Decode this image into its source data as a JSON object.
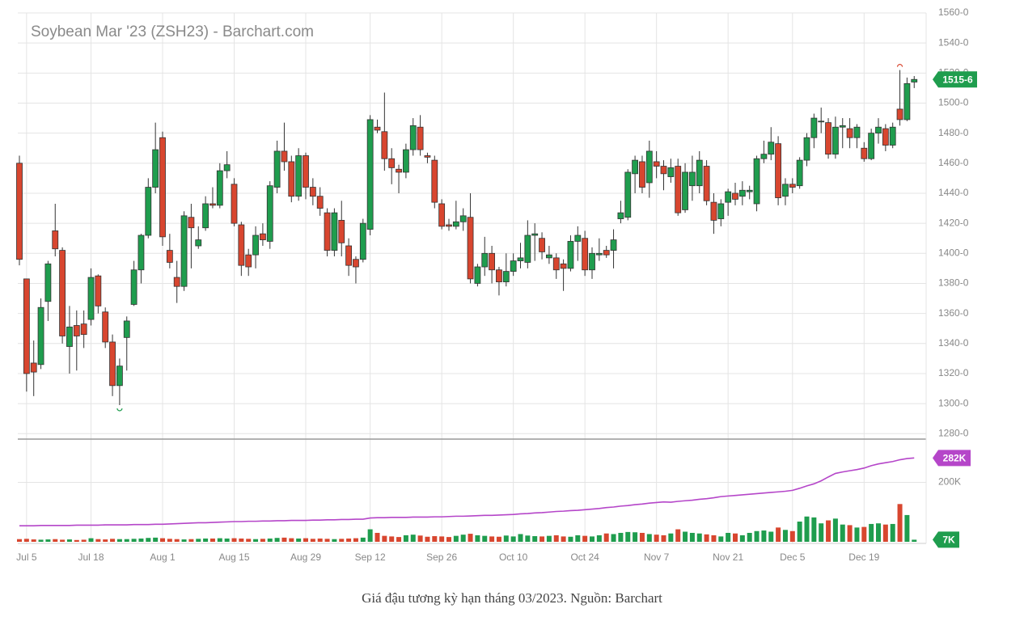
{
  "chart_data": {
    "type": "candlestick",
    "title": "Soybean Mar '23 (ZSH23) - Barchart.com",
    "caption": "Giá đậu tương kỳ hạn tháng 03/2023. Nguồn: Barchart",
    "categories": [
      null,
      "Jul 5",
      null,
      null,
      null,
      null,
      null,
      null,
      null,
      null,
      "Jul 18",
      null,
      null,
      null,
      null,
      null,
      null,
      null,
      null,
      null,
      "Aug 1",
      null,
      null,
      null,
      null,
      null,
      null,
      null,
      null,
      null,
      "Aug 15",
      null,
      null,
      null,
      null,
      null,
      null,
      null,
      null,
      null,
      "Aug 29",
      null,
      null,
      null,
      null,
      null,
      null,
      null,
      null,
      "Sep 12",
      null,
      null,
      null,
      null,
      null,
      null,
      null,
      null,
      null,
      "Sep 26",
      null,
      null,
      null,
      null,
      null,
      null,
      null,
      null,
      null,
      "Oct 10",
      null,
      null,
      null,
      null,
      null,
      null,
      null,
      null,
      null,
      "Oct 24",
      null,
      null,
      null,
      null,
      null,
      null,
      null,
      null,
      null,
      "Nov 7",
      null,
      null,
      null,
      null,
      null,
      null,
      null,
      null,
      null,
      "Nov 21",
      null,
      null,
      null,
      null,
      null,
      null,
      null,
      null,
      "Dec 5",
      null,
      null,
      null,
      null,
      null,
      null,
      null,
      null,
      null,
      "Dec 19",
      null,
      null,
      null,
      null,
      null,
      null,
      null
    ],
    "open": [
      1460,
      1383,
      1327,
      1326,
      1368,
      1415,
      1402,
      1338,
      1352,
      1353,
      1356,
      1385,
      1361,
      1341,
      1312,
      1344,
      1366,
      1389,
      1412,
      1444,
      1477,
      1402,
      1384,
      1378,
      1424,
      1405,
      1417,
      1433,
      1432,
      1455,
      1446,
      1419,
      1399,
      1399,
      1413,
      1408,
      1444,
      1468,
      1461,
      1438,
      1465,
      1444,
      1438,
      1427,
      1402,
      1422,
      1405,
      1396,
      1396,
      1416,
      1484,
      1481,
      1463,
      1456,
      1454,
      1469,
      1484,
      1465,
      1462,
      1433,
      1419,
      1418,
      1421,
      1424,
      1380,
      1391,
      1400,
      1389,
      1381,
      1388,
      1395,
      1394,
      1412,
      1410,
      1397,
      1397,
      1393,
      1390,
      1408,
      1410,
      1389,
      1399,
      1402,
      1402,
      1423,
      1424,
      1453,
      1461,
      1447,
      1461,
      1458,
      1451,
      1458,
      1429,
      1445,
      1445,
      1458,
      1434,
      1423,
      1434,
      1440,
      1438,
      1441,
      1433,
      1463,
      1466,
      1473,
      1438,
      1446,
      1445,
      1462,
      1477,
      1488,
      1487,
      1466,
      1484,
      1483,
      1477,
      1470,
      1463,
      1480,
      1483,
      1472,
      1496,
      1489,
      1514
    ],
    "high": [
      1465,
      1383,
      1342,
      1370,
      1395,
      1433,
      1404,
      1365,
      1362,
      1362,
      1390,
      1386,
      1364,
      1346,
      1330,
      1358,
      1395,
      1413,
      1450,
      1487,
      1481,
      1413,
      1395,
      1428,
      1433,
      1418,
      1438,
      1444,
      1460,
      1468,
      1450,
      1421,
      1403,
      1418,
      1420,
      1448,
      1475,
      1487,
      1465,
      1470,
      1467,
      1450,
      1444,
      1430,
      1430,
      1435,
      1410,
      1398,
      1423,
      1492,
      1489,
      1507,
      1470,
      1459,
      1473,
      1490,
      1492,
      1467,
      1465,
      1436,
      1423,
      1435,
      1430,
      1440,
      1393,
      1411,
      1405,
      1391,
      1400,
      1400,
      1407,
      1422,
      1420,
      1414,
      1405,
      1400,
      1396,
      1412,
      1418,
      1415,
      1404,
      1410,
      1405,
      1416,
      1435,
      1456,
      1465,
      1465,
      1475,
      1468,
      1462,
      1463,
      1463,
      1460,
      1465,
      1468,
      1462,
      1440,
      1436,
      1443,
      1447,
      1448,
      1445,
      1465,
      1475,
      1484,
      1478,
      1450,
      1450,
      1464,
      1480,
      1493,
      1497,
      1490,
      1491,
      1490,
      1490,
      1486,
      1474,
      1483,
      1490,
      1486,
      1487,
      1522,
      1517,
      1518
    ],
    "low": [
      1392,
      1308,
      1305,
      1323,
      1355,
      1398,
      1340,
      1320,
      1322,
      1337,
      1352,
      1360,
      1337,
      1305,
      1299,
      1322,
      1365,
      1380,
      1410,
      1440,
      1405,
      1390,
      1367,
      1375,
      1390,
      1403,
      1415,
      1430,
      1430,
      1450,
      1418,
      1385,
      1385,
      1390,
      1405,
      1403,
      1440,
      1455,
      1434,
      1435,
      1436,
      1432,
      1425,
      1398,
      1398,
      1398,
      1385,
      1380,
      1394,
      1412,
      1480,
      1455,
      1446,
      1440,
      1450,
      1465,
      1465,
      1460,
      1430,
      1416,
      1415,
      1416,
      1415,
      1380,
      1378,
      1385,
      1380,
      1372,
      1378,
      1385,
      1390,
      1390,
      1395,
      1396,
      1393,
      1383,
      1375,
      1388,
      1395,
      1385,
      1383,
      1395,
      1397,
      1390,
      1420,
      1422,
      1440,
      1440,
      1437,
      1450,
      1442,
      1447,
      1425,
      1427,
      1435,
      1440,
      1432,
      1413,
      1418,
      1425,
      1432,
      1432,
      1436,
      1428,
      1460,
      1462,
      1432,
      1432,
      1440,
      1443,
      1458,
      1470,
      1480,
      1463,
      1463,
      1470,
      1470,
      1470,
      1461,
      1462,
      1473,
      1468,
      1470,
      1485,
      1488,
      1510
    ],
    "close": [
      1396,
      1320,
      1321,
      1364,
      1393,
      1403,
      1345,
      1351,
      1345,
      1346,
      1384,
      1365,
      1341,
      1312,
      1325,
      1355,
      1389,
      1412,
      1444,
      1469,
      1411,
      1394,
      1378,
      1425,
      1417,
      1409,
      1433,
      1432,
      1455,
      1459,
      1420,
      1392,
      1391,
      1412,
      1409,
      1445,
      1468,
      1461,
      1438,
      1465,
      1444,
      1438,
      1430,
      1402,
      1427,
      1407,
      1392,
      1391,
      1420,
      1489,
      1482,
      1463,
      1457,
      1454,
      1469,
      1485,
      1469,
      1464,
      1434,
      1418,
      1418,
      1421,
      1425,
      1383,
      1391,
      1400,
      1389,
      1381,
      1388,
      1395,
      1397,
      1412,
      1413,
      1401,
      1399,
      1389,
      1390,
      1408,
      1412,
      1389,
      1400,
      1400,
      1399,
      1409,
      1427,
      1454,
      1462,
      1444,
      1468,
      1458,
      1453,
      1457,
      1427,
      1454,
      1454,
      1462,
      1435,
      1422,
      1433,
      1441,
      1436,
      1442,
      1442,
      1463,
      1466,
      1474,
      1437,
      1446,
      1444,
      1462,
      1477,
      1490,
      1488,
      1466,
      1484,
      1485,
      1477,
      1484,
      1463,
      1480,
      1484,
      1472,
      1484,
      1489,
      1513,
      1515.75
    ],
    "close_value_labels": [
      null,
      null,
      null,
      null,
      null,
      null,
      null,
      null,
      null,
      null,
      null,
      null,
      null,
      null,
      null,
      null,
      null,
      null,
      null,
      null,
      null,
      null,
      null,
      null,
      null,
      null,
      null,
      null,
      null,
      null,
      null,
      null,
      null,
      null,
      null,
      null,
      null,
      null,
      null,
      null,
      null,
      null,
      null,
      null,
      null,
      null,
      null,
      null,
      null,
      null,
      null,
      null,
      null,
      null,
      null,
      null,
      null,
      null,
      null,
      null,
      null,
      null,
      null,
      null,
      null,
      null,
      null,
      null,
      null,
      null,
      null,
      null,
      null,
      null,
      null,
      null,
      null,
      null,
      null,
      null,
      null,
      null,
      null,
      null,
      null,
      null,
      null,
      null,
      null,
      null,
      null,
      null,
      null,
      null,
      null,
      null,
      null,
      null,
      null,
      null,
      null,
      null,
      null,
      null,
      null,
      null,
      null,
      null,
      null,
      null,
      null,
      null,
      null,
      null,
      null,
      null,
      null,
      null,
      null,
      null,
      null,
      null,
      null,
      null,
      null,
      "1515-6"
    ],
    "up_color": "#1f9d4e",
    "down_color": "#d8462f",
    "ylim": [
      1278,
      1560
    ],
    "yticks": [
      {
        "value": 1280,
        "label": "1280-0"
      },
      {
        "value": 1300,
        "label": "1300-0"
      },
      {
        "value": 1320,
        "label": "1320-0"
      },
      {
        "value": 1340,
        "label": "1340-0"
      },
      {
        "value": 1360,
        "label": "1360-0"
      },
      {
        "value": 1380,
        "label": "1380-0"
      },
      {
        "value": 1400,
        "label": "1400-0"
      },
      {
        "value": 1420,
        "label": "1420-0"
      },
      {
        "value": 1440,
        "label": "1440-0"
      },
      {
        "value": 1460,
        "label": "1460-0"
      },
      {
        "value": 1480,
        "label": "1480-0"
      },
      {
        "value": 1500,
        "label": "1500-0"
      },
      {
        "value": 1520,
        "label": "1520-0"
      },
      {
        "value": 1540,
        "label": "1540-0"
      },
      {
        "value": 1560,
        "label": "1560-0"
      }
    ],
    "grid": true,
    "volume": {
      "values": [
        9000,
        10000,
        8000,
        7000,
        8000,
        9000,
        7000,
        8000,
        6000,
        7000,
        12000,
        9000,
        8000,
        10000,
        9000,
        9000,
        10000,
        11000,
        13000,
        14000,
        12000,
        10000,
        9000,
        8000,
        9000,
        10000,
        11000,
        11000,
        12000,
        11000,
        12000,
        11000,
        10000,
        9000,
        10000,
        11000,
        13000,
        14000,
        12000,
        11000,
        12000,
        10000,
        11000,
        10000,
        9000,
        10000,
        11000,
        12000,
        14000,
        42000,
        30000,
        20000,
        18000,
        16000,
        22000,
        24000,
        21000,
        17000,
        19000,
        18000,
        16000,
        20000,
        24000,
        27000,
        22000,
        20000,
        18000,
        17000,
        21000,
        18000,
        26000,
        21000,
        19000,
        18000,
        20000,
        22000,
        18000,
        17000,
        22000,
        20000,
        18000,
        22000,
        28000,
        26000,
        30000,
        33000,
        32000,
        30000,
        26000,
        24000,
        22000,
        28000,
        42000,
        34000,
        30000,
        28000,
        25000,
        22000,
        18000,
        30000,
        28000,
        22000,
        30000,
        36000,
        38000,
        34000,
        48000,
        40000,
        36000,
        68000,
        85000,
        82000,
        62000,
        72000,
        78000,
        58000,
        56000,
        48000,
        50000,
        60000,
        62000,
        58000,
        60000,
        127000,
        90000,
        7000
      ],
      "value_labels": [
        null,
        null,
        null,
        null,
        null,
        null,
        null,
        null,
        null,
        null,
        null,
        null,
        null,
        null,
        null,
        null,
        null,
        null,
        null,
        null,
        null,
        null,
        null,
        null,
        null,
        null,
        null,
        null,
        null,
        null,
        null,
        null,
        null,
        null,
        null,
        null,
        null,
        null,
        null,
        null,
        null,
        null,
        null,
        null,
        null,
        null,
        null,
        null,
        null,
        null,
        null,
        null,
        null,
        null,
        null,
        null,
        null,
        null,
        null,
        null,
        null,
        null,
        null,
        null,
        null,
        null,
        null,
        null,
        null,
        null,
        null,
        null,
        null,
        null,
        null,
        null,
        null,
        null,
        null,
        null,
        null,
        null,
        null,
        null,
        null,
        null,
        null,
        null,
        null,
        null,
        null,
        null,
        null,
        null,
        null,
        null,
        null,
        null,
        null,
        null,
        null,
        null,
        null,
        null,
        null,
        null,
        null,
        null,
        null,
        null,
        null,
        null,
        null,
        null,
        null,
        null,
        null,
        null,
        null,
        null,
        null,
        null,
        null,
        null,
        null,
        "7K"
      ]
    },
    "open_interest": {
      "color": "#b546c9",
      "values": [
        54000,
        54000,
        54000,
        55000,
        55000,
        55000,
        55000,
        55000,
        56000,
        56000,
        56000,
        56000,
        57000,
        57000,
        57000,
        57000,
        58000,
        58000,
        58000,
        59000,
        59000,
        60000,
        61000,
        62000,
        63000,
        64000,
        64000,
        65000,
        66000,
        67000,
        68000,
        68000,
        69000,
        69000,
        70000,
        70000,
        71000,
        71000,
        72000,
        72000,
        72000,
        73000,
        73000,
        74000,
        74000,
        75000,
        75000,
        76000,
        76000,
        80000,
        81000,
        81000,
        82000,
        82000,
        82000,
        83000,
        83000,
        83000,
        84000,
        84000,
        85000,
        86000,
        86000,
        87000,
        88000,
        89000,
        89000,
        90000,
        91000,
        92000,
        94000,
        95000,
        97000,
        98000,
        100000,
        102000,
        103000,
        105000,
        106000,
        108000,
        110000,
        112000,
        115000,
        117000,
        120000,
        122000,
        125000,
        127000,
        130000,
        132000,
        134000,
        133000,
        136000,
        138000,
        140000,
        143000,
        145000,
        148000,
        152000,
        154000,
        156000,
        158000,
        160000,
        162000,
        164000,
        166000,
        168000,
        170000,
        173000,
        180000,
        188000,
        195000,
        205000,
        218000,
        230000,
        235000,
        239000,
        243000,
        248000,
        256000,
        262000,
        266000,
        270000,
        276000,
        280000,
        282000
      ],
      "value_labels": [
        null,
        null,
        null,
        null,
        null,
        null,
        null,
        null,
        null,
        null,
        null,
        null,
        null,
        null,
        null,
        null,
        null,
        null,
        null,
        null,
        null,
        null,
        null,
        null,
        null,
        null,
        null,
        null,
        null,
        null,
        null,
        null,
        null,
        null,
        null,
        null,
        null,
        null,
        null,
        null,
        null,
        null,
        null,
        null,
        null,
        null,
        null,
        null,
        null,
        null,
        null,
        null,
        null,
        null,
        null,
        null,
        null,
        null,
        null,
        null,
        null,
        null,
        null,
        null,
        null,
        null,
        null,
        null,
        null,
        null,
        null,
        null,
        null,
        null,
        null,
        null,
        null,
        null,
        null,
        null,
        null,
        null,
        null,
        null,
        null,
        null,
        null,
        null,
        null,
        null,
        null,
        null,
        null,
        null,
        null,
        null,
        null,
        null,
        null,
        null,
        null,
        null,
        null,
        null,
        null,
        null,
        null,
        null,
        null,
        null,
        null,
        null,
        null,
        null,
        null,
        null,
        null,
        null,
        null,
        null,
        null,
        null,
        null,
        null,
        null,
        "282K"
      ]
    },
    "y2lim": [
      0,
      340000
    ],
    "y2ticks": [
      {
        "value": 200000,
        "label": "200K"
      }
    ]
  }
}
